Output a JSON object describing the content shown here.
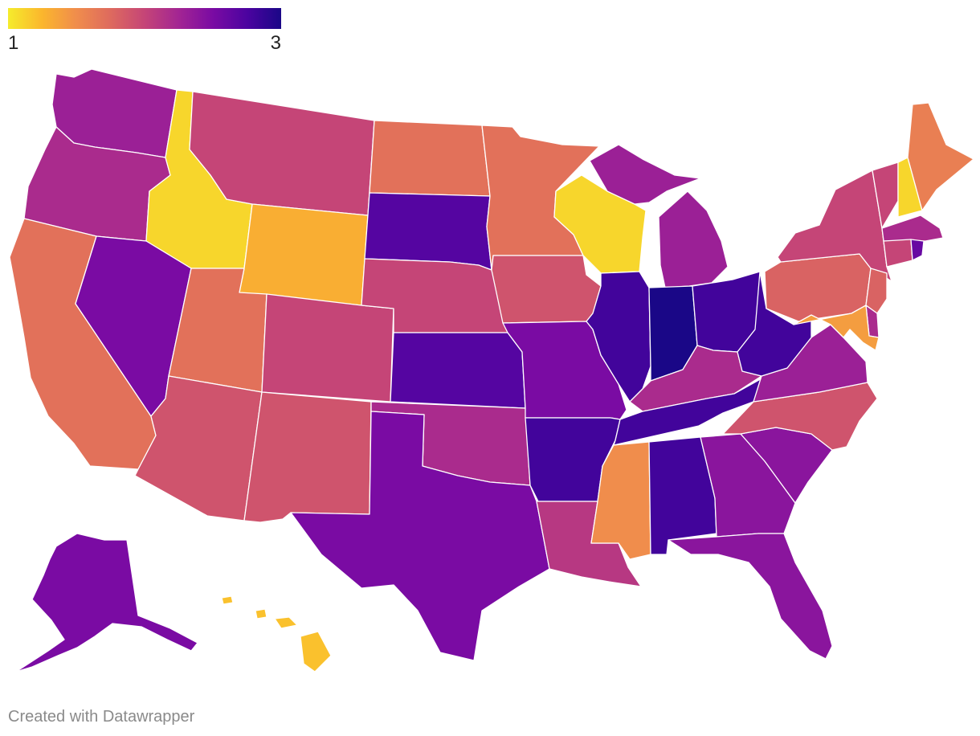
{
  "legend": {
    "min_label": "1",
    "max_label": "3",
    "gradient_stops": [
      "#f5ec2c",
      "#fbb62d",
      "#f08d4c",
      "#de6a5e",
      "#c54577",
      "#a32593",
      "#7a0ba3",
      "#4c03a0",
      "#1a0787"
    ]
  },
  "scale": {
    "min": 1,
    "max": 3
  },
  "chart_data": {
    "type": "choropleth",
    "region": "United States",
    "scale_min": 1,
    "scale_max": 3,
    "states": [
      {
        "id": "WA",
        "value": 2.3
      },
      {
        "id": "OR",
        "value": 2.2
      },
      {
        "id": "CA",
        "value": 1.7
      },
      {
        "id": "ID",
        "value": 1.1
      },
      {
        "id": "NV",
        "value": 2.5
      },
      {
        "id": "MT",
        "value": 2.0
      },
      {
        "id": "WY",
        "value": 1.3
      },
      {
        "id": "UT",
        "value": 1.7
      },
      {
        "id": "AZ",
        "value": 1.9
      },
      {
        "id": "CO",
        "value": 2.0
      },
      {
        "id": "NM",
        "value": 1.9
      },
      {
        "id": "ND",
        "value": 1.7
      },
      {
        "id": "SD",
        "value": 2.7
      },
      {
        "id": "NE",
        "value": 2.0
      },
      {
        "id": "KS",
        "value": 2.7
      },
      {
        "id": "OK",
        "value": 2.2
      },
      {
        "id": "TX",
        "value": 2.5
      },
      {
        "id": "MN",
        "value": 1.7
      },
      {
        "id": "IA",
        "value": 1.9
      },
      {
        "id": "MO",
        "value": 2.5
      },
      {
        "id": "AR",
        "value": 2.8
      },
      {
        "id": "LA",
        "value": 2.1
      },
      {
        "id": "WI",
        "value": 1.1
      },
      {
        "id": "IL",
        "value": 2.8
      },
      {
        "id": "MI",
        "value": 2.3
      },
      {
        "id": "IN",
        "value": 3.0
      },
      {
        "id": "OH",
        "value": 2.8
      },
      {
        "id": "KY",
        "value": 2.2
      },
      {
        "id": "TN",
        "value": 2.8
      },
      {
        "id": "MS",
        "value": 1.5
      },
      {
        "id": "AL",
        "value": 2.8
      },
      {
        "id": "GA",
        "value": 2.4
      },
      {
        "id": "FL",
        "value": 2.4
      },
      {
        "id": "SC",
        "value": 2.4
      },
      {
        "id": "NC",
        "value": 1.9
      },
      {
        "id": "VA",
        "value": 2.3
      },
      {
        "id": "WV",
        "value": 2.8
      },
      {
        "id": "PA",
        "value": 1.8
      },
      {
        "id": "NY",
        "value": 2.0
      },
      {
        "id": "VT",
        "value": 2.0
      },
      {
        "id": "NH",
        "value": 1.1
      },
      {
        "id": "ME",
        "value": 1.6
      },
      {
        "id": "MA",
        "value": 2.2
      },
      {
        "id": "RI",
        "value": 2.6
      },
      {
        "id": "CT",
        "value": 2.0
      },
      {
        "id": "NJ",
        "value": 1.8
      },
      {
        "id": "DE",
        "value": 2.2
      },
      {
        "id": "MD",
        "value": 1.4
      },
      {
        "id": "AK",
        "value": 2.5
      },
      {
        "id": "HI",
        "value": 1.2
      }
    ]
  },
  "footer": {
    "credit": "Created with Datawrapper"
  }
}
